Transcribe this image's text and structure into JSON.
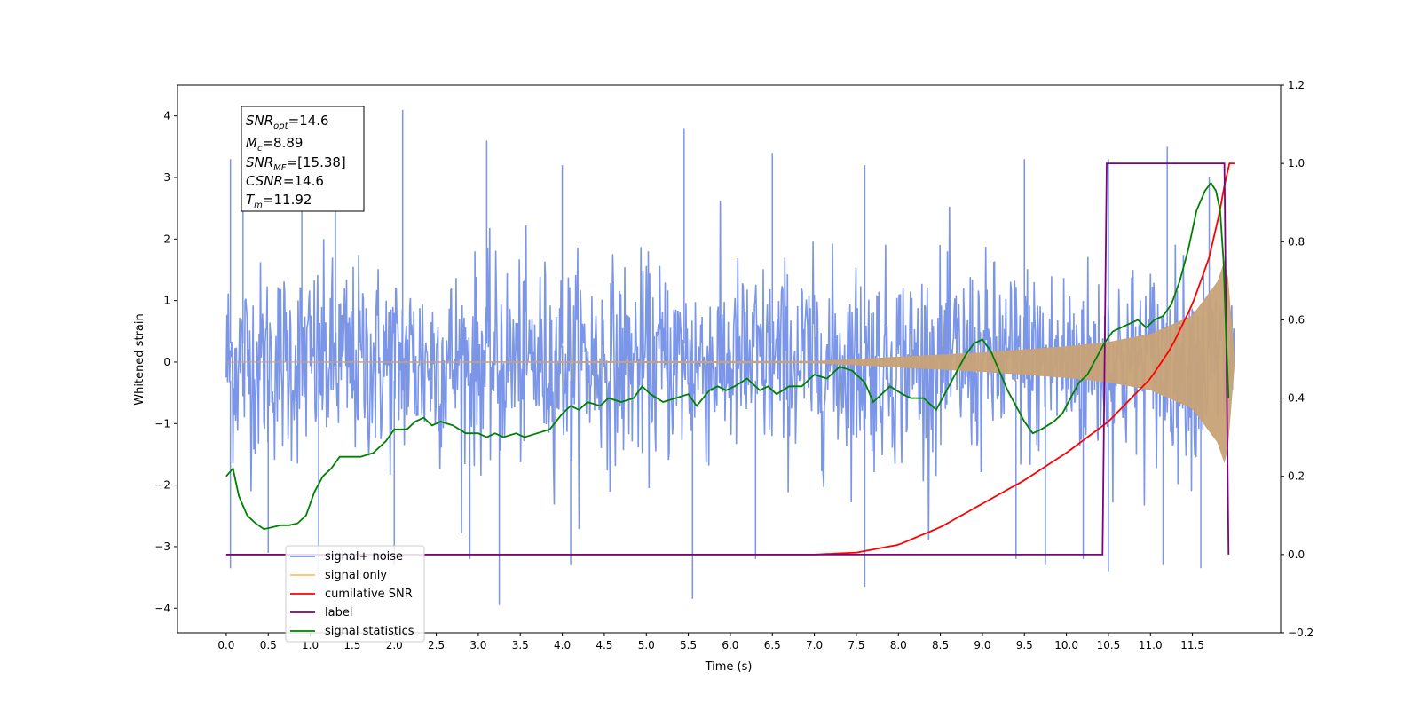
{
  "chart_data": {
    "type": "line",
    "xlabel": "Time (s)",
    "ylabel": "Whitened strain",
    "xlim": [
      -0.58,
      12.55
    ],
    "ylim_left": [
      -4.4,
      4.5
    ],
    "ylim_right": [
      -0.2,
      1.2
    ],
    "x_ticks": [
      0.0,
      0.5,
      1.0,
      1.5,
      2.0,
      2.5,
      3.0,
      3.5,
      4.0,
      4.5,
      5.0,
      5.5,
      6.0,
      6.5,
      7.0,
      7.5,
      8.0,
      8.5,
      9.0,
      9.5,
      10.0,
      10.5,
      11.0,
      11.5
    ],
    "x_tick_labels": [
      "0.0",
      "0.5",
      "1.0",
      "1.5",
      "2.0",
      "2.5",
      "3.0",
      "3.5",
      "4.0",
      "4.5",
      "5.0",
      "5.5",
      "6.0",
      "6.5",
      "7.0",
      "7.5",
      "8.0",
      "8.5",
      "9.0",
      "9.5",
      "10.0",
      "10.5",
      "11.0",
      "11.5"
    ],
    "y_left_ticks": [
      -4,
      -3,
      -2,
      -1,
      0,
      1,
      2,
      3,
      4
    ],
    "y_left_tick_labels": [
      "−4",
      "−3",
      "−2",
      "−1",
      "0",
      "1",
      "2",
      "3",
      "4"
    ],
    "y_right_ticks": [
      -0.2,
      0.0,
      0.2,
      0.4,
      0.6,
      0.8,
      1.0,
      1.2
    ],
    "y_right_tick_labels": [
      "−0.2",
      "0.0",
      "0.2",
      "0.4",
      "0.6",
      "0.8",
      "1.0",
      "1.2"
    ],
    "grid": false,
    "legend_position": "bottom-left",
    "annotation": {
      "lines": [
        {
          "base": "SNR",
          "sub": "opt",
          "value": "=14.6"
        },
        {
          "base": "M",
          "sub": "c",
          "value": "=8.89"
        },
        {
          "base": "SNR",
          "sub": "MF",
          "value": "=[15.38]"
        },
        {
          "base": "CSNR",
          "sub": "",
          "value": "=14.6"
        },
        {
          "base": "T",
          "sub": "m",
          "value": "=11.92"
        }
      ]
    },
    "series": [
      {
        "name": "signal+ noise",
        "axis": "left",
        "color": "#7b96e8",
        "style": "noise band",
        "t_range": [
          0.0,
          12.0
        ],
        "envelope_typical": 1.6,
        "peak_times": [
          0.05,
          0.2,
          0.9,
          1.3,
          2.1,
          3.1,
          4.0,
          5.45,
          6.5,
          7.6,
          9.5,
          10.5,
          11.2,
          11.7
        ],
        "peak_values": [
          3.3,
          3.0,
          3.2,
          3.5,
          4.1,
          3.6,
          3.2,
          3.8,
          3.4,
          3.2,
          3.3,
          3.3,
          3.5,
          3.0
        ],
        "trough_times": [
          0.05,
          0.5,
          1.1,
          2.0,
          2.9,
          3.25,
          4.1,
          5.55,
          6.3,
          7.6,
          9.4,
          9.75,
          10.2,
          10.5,
          11.15,
          11.6
        ],
        "trough_values": [
          -3.35,
          -3.1,
          -3.5,
          -3.3,
          -3.2,
          -3.95,
          -3.3,
          -3.85,
          -3.2,
          -3.65,
          -3.2,
          -3.3,
          -3.2,
          -3.4,
          -3.3,
          -3.35
        ]
      },
      {
        "name": "signal only",
        "axis": "left",
        "color": "#c8a277",
        "style": "chirp band",
        "envelope_t": [
          0.0,
          7.0,
          8.0,
          9.0,
          10.0,
          10.5,
          11.0,
          11.5,
          11.8,
          11.9,
          12.0
        ],
        "envelope_amp": [
          0.0,
          0.01,
          0.08,
          0.15,
          0.25,
          0.32,
          0.45,
          0.75,
          1.3,
          1.7,
          0.0
        ]
      },
      {
        "name": "cumilative SNR",
        "axis": "right",
        "color": "#ff0000",
        "x": [
          0.0,
          7.0,
          7.5,
          8.0,
          8.5,
          9.0,
          9.5,
          10.0,
          10.5,
          11.0,
          11.25,
          11.5,
          11.7,
          11.85,
          11.92,
          12.0
        ],
        "y": [
          0.0,
          0.0,
          0.005,
          0.025,
          0.07,
          0.13,
          0.19,
          0.26,
          0.34,
          0.45,
          0.53,
          0.64,
          0.76,
          0.9,
          1.0,
          1.0
        ]
      },
      {
        "name": "label",
        "axis": "right",
        "color": "#800080",
        "x": [
          0.0,
          10.43,
          10.48,
          11.88,
          11.93,
          11.93
        ],
        "y": [
          0.0,
          0.0,
          1.0,
          1.0,
          0.0,
          0.0
        ]
      },
      {
        "name": "signal statistics",
        "axis": "right",
        "color": "#008000",
        "x": [
          0.0,
          0.08,
          0.15,
          0.25,
          0.35,
          0.45,
          0.55,
          0.65,
          0.75,
          0.85,
          0.95,
          1.05,
          1.15,
          1.25,
          1.35,
          1.45,
          1.6,
          1.75,
          1.9,
          2.0,
          2.15,
          2.25,
          2.35,
          2.45,
          2.55,
          2.7,
          2.85,
          3.0,
          3.1,
          3.2,
          3.3,
          3.45,
          3.55,
          3.7,
          3.85,
          4.0,
          4.1,
          4.2,
          4.3,
          4.45,
          4.55,
          4.7,
          4.85,
          4.95,
          5.05,
          5.2,
          5.35,
          5.5,
          5.6,
          5.75,
          5.85,
          5.95,
          6.05,
          6.2,
          6.35,
          6.45,
          6.55,
          6.7,
          6.85,
          7.0,
          7.15,
          7.3,
          7.45,
          7.6,
          7.7,
          7.8,
          7.9,
          8.05,
          8.15,
          8.3,
          8.45,
          8.55,
          8.7,
          8.8,
          8.9,
          9.0,
          9.1,
          9.2,
          9.3,
          9.4,
          9.5,
          9.6,
          9.7,
          9.85,
          9.95,
          10.05,
          10.15,
          10.25,
          10.35,
          10.45,
          10.55,
          10.65,
          10.75,
          10.85,
          10.95,
          11.05,
          11.15,
          11.25,
          11.35,
          11.45,
          11.55,
          11.65,
          11.72,
          11.78,
          11.83,
          11.87,
          11.9,
          11.93
        ],
        "y": [
          0.2,
          0.22,
          0.15,
          0.1,
          0.08,
          0.065,
          0.07,
          0.075,
          0.075,
          0.08,
          0.1,
          0.16,
          0.2,
          0.22,
          0.25,
          0.25,
          0.25,
          0.26,
          0.29,
          0.32,
          0.32,
          0.34,
          0.35,
          0.33,
          0.34,
          0.33,
          0.31,
          0.31,
          0.3,
          0.31,
          0.3,
          0.31,
          0.3,
          0.31,
          0.32,
          0.36,
          0.38,
          0.37,
          0.39,
          0.38,
          0.4,
          0.39,
          0.4,
          0.43,
          0.41,
          0.39,
          0.4,
          0.41,
          0.38,
          0.42,
          0.43,
          0.42,
          0.43,
          0.45,
          0.42,
          0.43,
          0.41,
          0.43,
          0.43,
          0.46,
          0.45,
          0.48,
          0.47,
          0.44,
          0.39,
          0.41,
          0.43,
          0.41,
          0.4,
          0.4,
          0.37,
          0.41,
          0.47,
          0.51,
          0.54,
          0.55,
          0.52,
          0.47,
          0.42,
          0.38,
          0.34,
          0.31,
          0.32,
          0.34,
          0.36,
          0.4,
          0.44,
          0.46,
          0.5,
          0.54,
          0.57,
          0.58,
          0.59,
          0.6,
          0.58,
          0.6,
          0.61,
          0.64,
          0.7,
          0.78,
          0.88,
          0.93,
          0.95,
          0.93,
          0.88,
          0.75,
          0.56,
          0.4
        ]
      }
    ]
  }
}
